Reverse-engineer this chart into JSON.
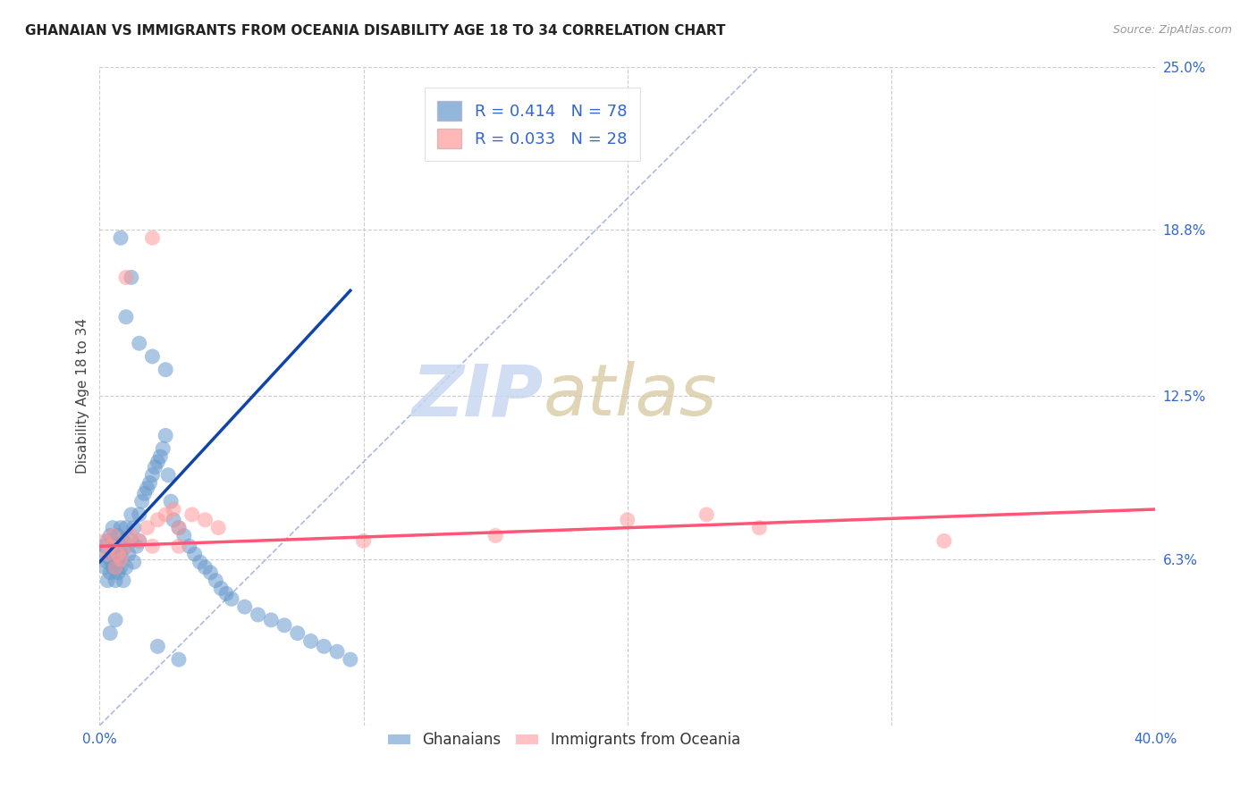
{
  "title": "GHANAIAN VS IMMIGRANTS FROM OCEANIA DISABILITY AGE 18 TO 34 CORRELATION CHART",
  "source": "Source: ZipAtlas.com",
  "ylabel": "Disability Age 18 to 34",
  "xlim": [
    0.0,
    0.4
  ],
  "ylim": [
    0.0,
    0.25
  ],
  "xticks": [
    0.0,
    0.1,
    0.2,
    0.3,
    0.4
  ],
  "xticklabels": [
    "0.0%",
    "",
    "",
    "",
    "40.0%"
  ],
  "yticks": [
    0.0,
    0.063,
    0.125,
    0.188,
    0.25
  ],
  "yticklabels": [
    "",
    "6.3%",
    "12.5%",
    "18.8%",
    "25.0%"
  ],
  "blue_R": 0.414,
  "blue_N": 78,
  "pink_R": 0.033,
  "pink_N": 28,
  "blue_color": "#6699CC",
  "pink_color": "#FF9999",
  "blue_line_color": "#1144AA",
  "pink_line_color": "#FF5577",
  "diag_color": "#AABBDD",
  "watermark_left": "ZIP",
  "watermark_right": "atlas",
  "blue_scatter_x": [
    0.001,
    0.002,
    0.002,
    0.003,
    0.003,
    0.003,
    0.004,
    0.004,
    0.004,
    0.005,
    0.005,
    0.005,
    0.005,
    0.006,
    0.006,
    0.006,
    0.007,
    0.007,
    0.007,
    0.008,
    0.008,
    0.008,
    0.009,
    0.009,
    0.01,
    0.01,
    0.01,
    0.011,
    0.012,
    0.012,
    0.013,
    0.013,
    0.014,
    0.015,
    0.015,
    0.016,
    0.017,
    0.018,
    0.019,
    0.02,
    0.021,
    0.022,
    0.023,
    0.024,
    0.025,
    0.026,
    0.027,
    0.028,
    0.03,
    0.032,
    0.034,
    0.036,
    0.038,
    0.04,
    0.042,
    0.044,
    0.046,
    0.048,
    0.05,
    0.055,
    0.06,
    0.065,
    0.07,
    0.075,
    0.08,
    0.085,
    0.09,
    0.095,
    0.01,
    0.015,
    0.02,
    0.025,
    0.012,
    0.008,
    0.006,
    0.004,
    0.022,
    0.03
  ],
  "blue_scatter_y": [
    0.065,
    0.06,
    0.068,
    0.055,
    0.062,
    0.07,
    0.058,
    0.063,
    0.072,
    0.06,
    0.065,
    0.07,
    0.075,
    0.055,
    0.06,
    0.068,
    0.058,
    0.063,
    0.072,
    0.06,
    0.065,
    0.075,
    0.055,
    0.07,
    0.06,
    0.068,
    0.075,
    0.065,
    0.07,
    0.08,
    0.062,
    0.075,
    0.068,
    0.07,
    0.08,
    0.085,
    0.088,
    0.09,
    0.092,
    0.095,
    0.098,
    0.1,
    0.102,
    0.105,
    0.11,
    0.095,
    0.085,
    0.078,
    0.075,
    0.072,
    0.068,
    0.065,
    0.062,
    0.06,
    0.058,
    0.055,
    0.052,
    0.05,
    0.048,
    0.045,
    0.042,
    0.04,
    0.038,
    0.035,
    0.032,
    0.03,
    0.028,
    0.025,
    0.155,
    0.145,
    0.14,
    0.135,
    0.17,
    0.185,
    0.04,
    0.035,
    0.03,
    0.025
  ],
  "pink_scatter_x": [
    0.002,
    0.003,
    0.004,
    0.005,
    0.006,
    0.007,
    0.008,
    0.01,
    0.012,
    0.015,
    0.018,
    0.02,
    0.022,
    0.025,
    0.028,
    0.03,
    0.035,
    0.04,
    0.045,
    0.1,
    0.15,
    0.2,
    0.23,
    0.25,
    0.32,
    0.01,
    0.02,
    0.03
  ],
  "pink_scatter_y": [
    0.07,
    0.065,
    0.068,
    0.072,
    0.06,
    0.065,
    0.063,
    0.068,
    0.072,
    0.07,
    0.075,
    0.068,
    0.078,
    0.08,
    0.082,
    0.075,
    0.08,
    0.078,
    0.075,
    0.07,
    0.072,
    0.078,
    0.08,
    0.075,
    0.07,
    0.17,
    0.185,
    0.068
  ],
  "blue_trendline_x": [
    0.0,
    0.095
  ],
  "blue_trendline_y": [
    0.062,
    0.165
  ],
  "pink_trendline_x": [
    0.0,
    0.4
  ],
  "pink_trendline_y": [
    0.068,
    0.082
  ]
}
